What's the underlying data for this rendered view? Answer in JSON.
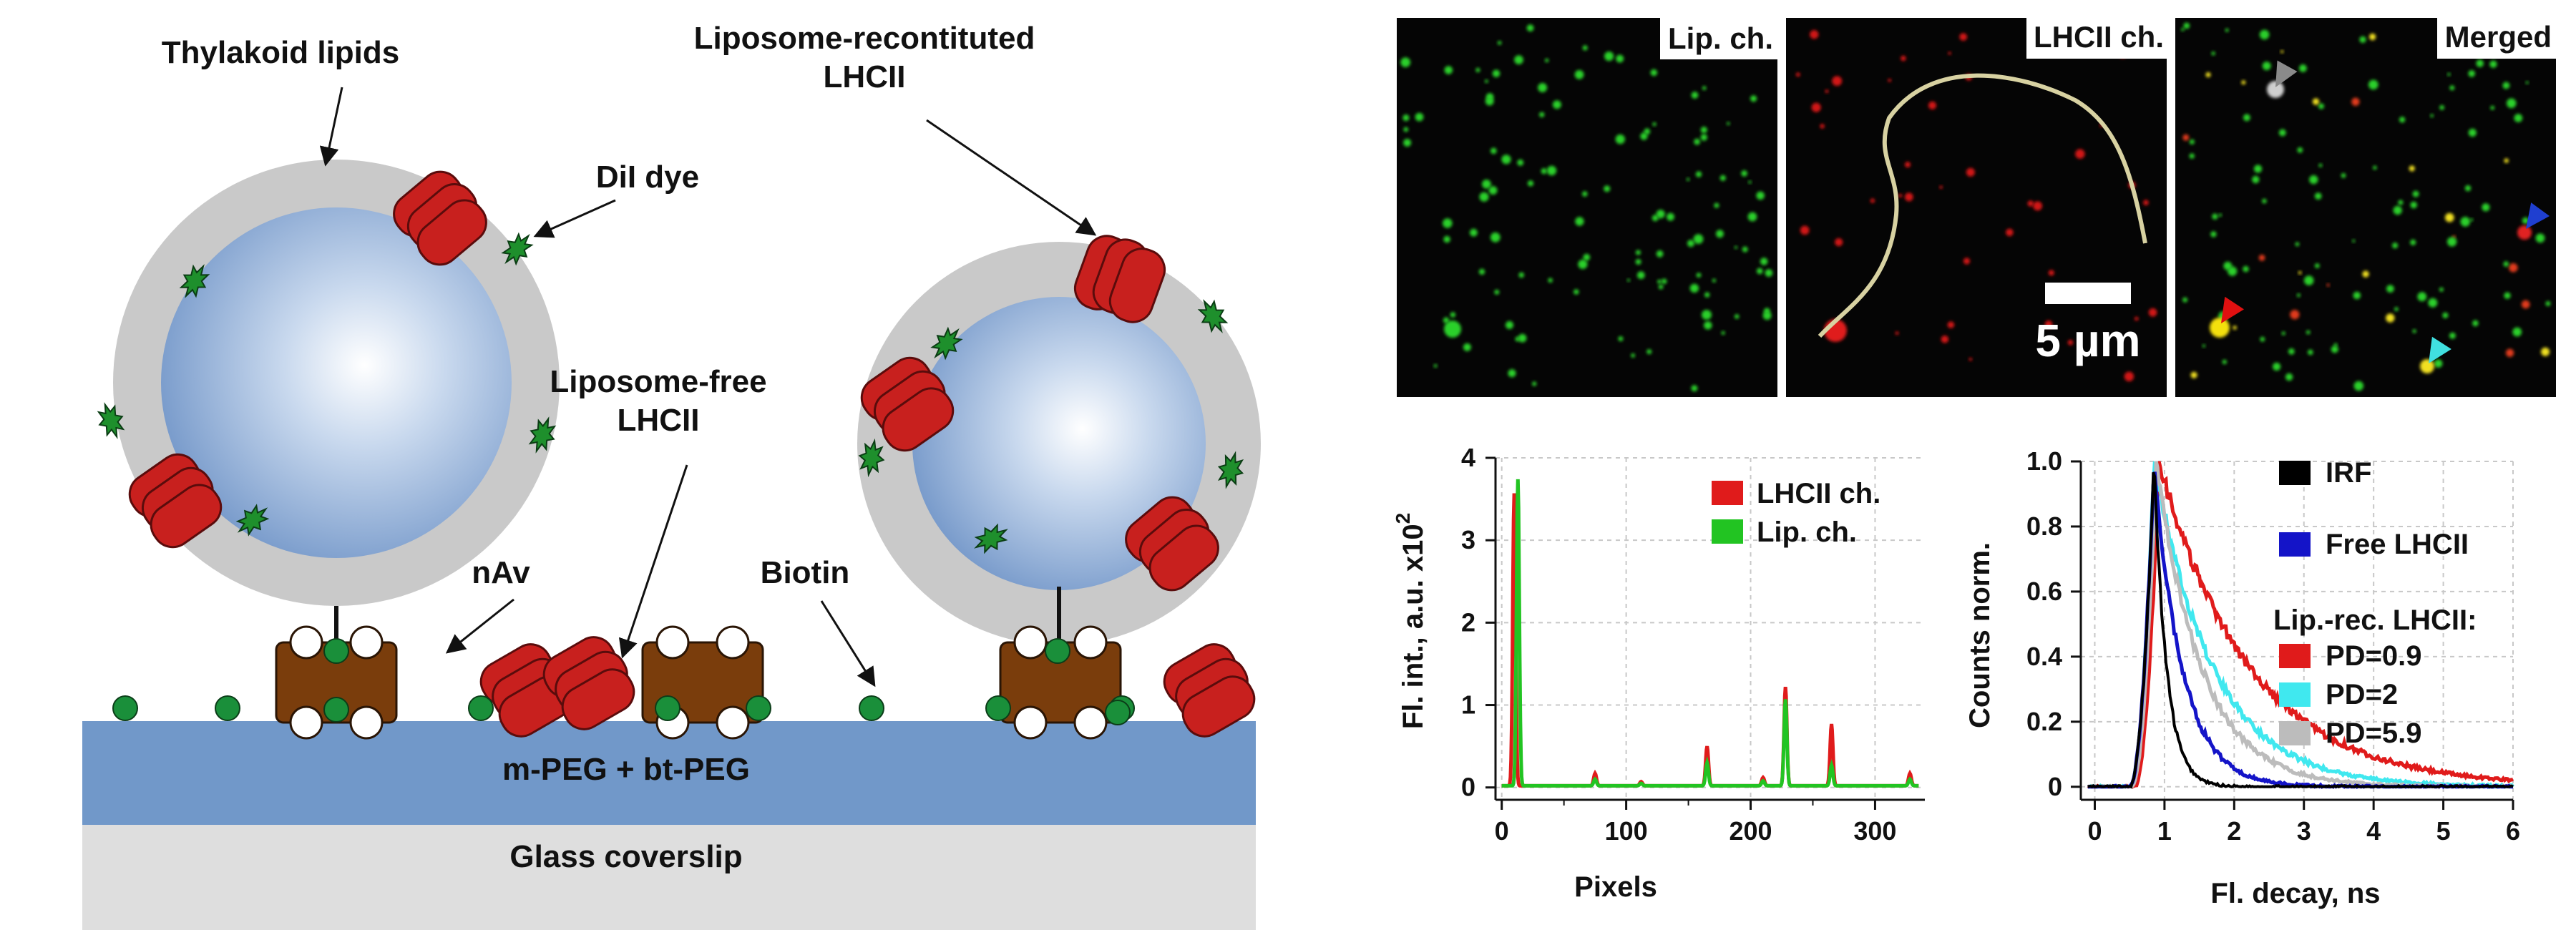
{
  "schematic": {
    "labels": {
      "thylakoid": "Thylakoid lipids",
      "liposome_rec_line1": "Liposome-recontituted",
      "liposome_rec_line2": "LHCII",
      "dil": "DiI dye",
      "free_line1": "Liposome-free",
      "free_line2": "LHCII",
      "nav": "nAv",
      "biotin": "Biotin",
      "peg_layer": "m-PEG + bt-PEG",
      "glass_layer": "Glass coverslip"
    },
    "colors": {
      "lhcii": "#c8201e",
      "dye": "#1e8f2c",
      "peg": "#7198c9",
      "glass": "#dedede",
      "shell": "#c9c9c9",
      "nav": "#7a3d0c",
      "biotin": "#1a8f3a"
    }
  },
  "images": {
    "panels": [
      {
        "title": "Lip. ch."
      },
      {
        "title": "LHCII ch."
      },
      {
        "title": "Merged"
      }
    ],
    "scalebar": "5 µm",
    "arrow_colors": [
      "#8a8a8a",
      "#1f3fd0",
      "#e01010",
      "#40e0e0"
    ]
  },
  "chart_data": [
    {
      "type": "line",
      "xlabel": "Pixels",
      "ylabel": "Fl. int., a.u. x10",
      "ylabel_sup": "2",
      "xlim": [
        -5,
        340
      ],
      "ylim": [
        -0.15,
        4
      ],
      "xticks": [
        0,
        100,
        200,
        300
      ],
      "yticks": [
        0,
        1,
        2,
        3,
        4
      ],
      "grid": true,
      "legend_position": "top-right",
      "series": [
        {
          "name": "LHCII ch.",
          "color": "#e01b1b",
          "peaks": [
            [
              10,
              3.55
            ],
            [
              75,
              0.15
            ],
            [
              112,
              0.05
            ],
            [
              165,
              0.48
            ],
            [
              210,
              0.1
            ],
            [
              228,
              1.2
            ],
            [
              265,
              0.75
            ],
            [
              328,
              0.15
            ]
          ]
        },
        {
          "name": "Lip. ch.",
          "color": "#22c422",
          "peaks": [
            [
              13,
              3.72
            ],
            [
              75,
              0.08
            ],
            [
              112,
              0.03
            ],
            [
              165,
              0.28
            ],
            [
              210,
              0.06
            ],
            [
              228,
              1.05
            ],
            [
              265,
              0.25
            ],
            [
              328,
              0.08
            ]
          ]
        }
      ]
    },
    {
      "type": "line",
      "xlabel": "Fl. decay, ns",
      "ylabel": "Counts norm.",
      "xlim": [
        -0.2,
        6
      ],
      "ylim": [
        -0.04,
        1.0
      ],
      "xticks": [
        0,
        1,
        2,
        3,
        4,
        5,
        6
      ],
      "yticks": [
        0,
        0.2,
        0.4,
        0.6,
        0.8,
        1.0
      ],
      "ytick_labels": [
        "0",
        "0.2",
        "0.4",
        "0.6",
        "0.8",
        "1.0"
      ],
      "grid": true,
      "legend_position": "right",
      "legend_header": "Lip.-rec. LHCII:",
      "series": [
        {
          "name": "IRF",
          "color": "#000000",
          "peak": 0.85,
          "tau": 0.18
        },
        {
          "name": "Free LHCII",
          "color": "#1414c8",
          "peak": 0.85,
          "tau": 0.4
        },
        {
          "name": "PD=0.9",
          "color": "#e01b1b",
          "peak": 0.92,
          "tau": 1.3
        },
        {
          "name": "PD=2",
          "color": "#40e8ef",
          "peak": 0.85,
          "tau": 0.85
        },
        {
          "name": "PD=5.9",
          "color": "#bcbcbc",
          "peak": 0.88,
          "tau": 0.65
        }
      ]
    }
  ]
}
